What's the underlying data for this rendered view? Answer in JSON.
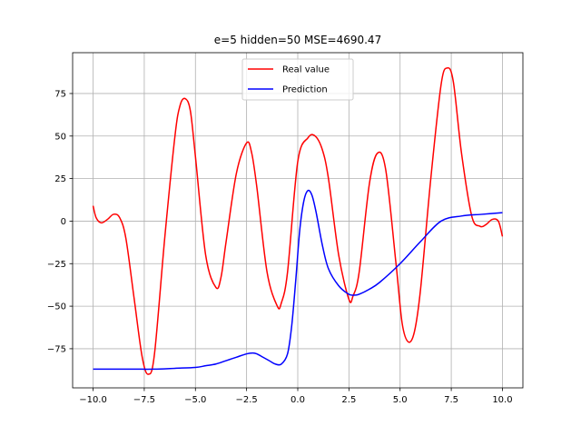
{
  "chart_data": {
    "type": "line",
    "title": "e=5 hidden=50 MSE=4690.47",
    "xlabel": "",
    "ylabel": "",
    "xlim": [
      -11.0,
      11.0
    ],
    "ylim": [
      -98,
      99
    ],
    "x_ticks": [
      -10.0,
      -7.5,
      -5.0,
      -2.5,
      0.0,
      2.5,
      5.0,
      7.5,
      10.0
    ],
    "x_tick_labels": [
      "−10.0",
      "−7.5",
      "−5.0",
      "−2.5",
      "0.0",
      "2.5",
      "5.0",
      "7.5",
      "10.0"
    ],
    "y_ticks": [
      -75,
      -50,
      -25,
      0,
      25,
      50,
      75
    ],
    "y_tick_labels": [
      "−75",
      "−50",
      "−25",
      "0",
      "25",
      "50",
      "75"
    ],
    "grid": true,
    "legend_position": "top-center",
    "series": [
      {
        "name": "Real value",
        "color": "#ff0000",
        "x": [
          -10.0,
          -9.85,
          -9.6,
          -9.3,
          -9.0,
          -8.7,
          -8.4,
          -8.0,
          -7.6,
          -7.3,
          -7.0,
          -6.5,
          -6.0,
          -5.75,
          -5.5,
          -5.25,
          -5.0,
          -4.5,
          -4.0,
          -3.75,
          -3.5,
          -3.0,
          -2.5,
          -2.25,
          -2.0,
          -1.5,
          -1.0,
          -0.8,
          -0.5,
          0.0,
          0.5,
          0.85,
          1.2,
          1.5,
          2.0,
          2.5,
          2.7,
          3.0,
          3.5,
          3.9,
          4.3,
          4.8,
          5.1,
          5.4,
          5.7,
          6.0,
          6.5,
          7.0,
          7.3,
          7.6,
          8.0,
          8.5,
          8.9,
          9.2,
          9.5,
          9.8,
          10.0
        ],
        "y": [
          9,
          2,
          -1,
          1,
          4,
          2,
          -10,
          -45,
          -80,
          -90,
          -78,
          -10,
          50,
          68,
          72,
          65,
          38,
          -20,
          -39,
          -33,
          -12,
          28,
          46,
          40,
          20,
          -30,
          -50,
          -48,
          -30,
          35,
          49,
          50,
          42,
          25,
          -20,
          -46,
          -44,
          -30,
          22,
          40,
          30,
          -25,
          -60,
          -71,
          -65,
          -40,
          25,
          80,
          90,
          82,
          40,
          3,
          -3,
          -2,
          1,
          0,
          -9
        ]
      },
      {
        "name": "Prediction",
        "color": "#0000ff",
        "x": [
          -10.0,
          -9.0,
          -8.0,
          -7.0,
          -6.0,
          -5.0,
          -4.5,
          -4.0,
          -3.5,
          -3.0,
          -2.5,
          -2.2,
          -2.0,
          -1.7,
          -1.4,
          -1.1,
          -0.8,
          -0.5,
          -0.3,
          -0.1,
          0.1,
          0.3,
          0.5,
          0.7,
          0.9,
          1.2,
          1.5,
          2.0,
          2.5,
          2.8,
          3.0,
          3.5,
          4.0,
          5.0,
          6.0,
          7.0,
          8.0,
          9.0,
          10.0
        ],
        "y": [
          -87,
          -87,
          -87,
          -87,
          -86.5,
          -86,
          -85,
          -84,
          -82,
          -80,
          -78,
          -77.5,
          -78,
          -80,
          -82,
          -84,
          -84,
          -78,
          -62,
          -35,
          -5,
          12,
          18,
          15,
          5,
          -14,
          -28,
          -38,
          -43,
          -43.5,
          -43,
          -40,
          -36,
          -25,
          -12,
          0,
          3,
          4,
          5
        ]
      }
    ]
  }
}
